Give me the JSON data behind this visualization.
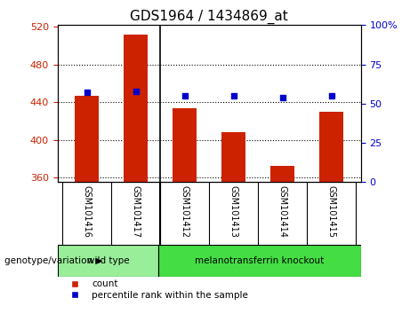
{
  "title": "GDS1964 / 1434869_at",
  "samples": [
    "GSM101416",
    "GSM101417",
    "GSM101412",
    "GSM101413",
    "GSM101414",
    "GSM101415"
  ],
  "counts": [
    447,
    512,
    434,
    408,
    372,
    430
  ],
  "percentiles": [
    57,
    58,
    55,
    55,
    54,
    55
  ],
  "ylim_left": [
    355,
    522
  ],
  "ylim_right": [
    0,
    100
  ],
  "yticks_left": [
    360,
    400,
    440,
    480,
    520
  ],
  "yticks_right": [
    0,
    25,
    50,
    75,
    100
  ],
  "bar_color": "#cc2200",
  "dot_color": "#0000cc",
  "grid_color": "#000000",
  "bg_color": "#ffffff",
  "sample_bg_color": "#cccccc",
  "groups": [
    {
      "label": "wild type",
      "indices": [
        0,
        1
      ],
      "color": "#99ee99"
    },
    {
      "label": "melanotransferrin knockout",
      "indices": [
        2,
        3,
        4,
        5
      ],
      "color": "#44dd44"
    }
  ],
  "genotype_label": "genotype/variation",
  "legend_count": "count",
  "legend_percentile": "percentile rank within the sample",
  "tick_label_color_left": "#cc2200",
  "tick_label_color_right": "#0000cc",
  "bar_bottom": 355,
  "bar_width": 0.5
}
